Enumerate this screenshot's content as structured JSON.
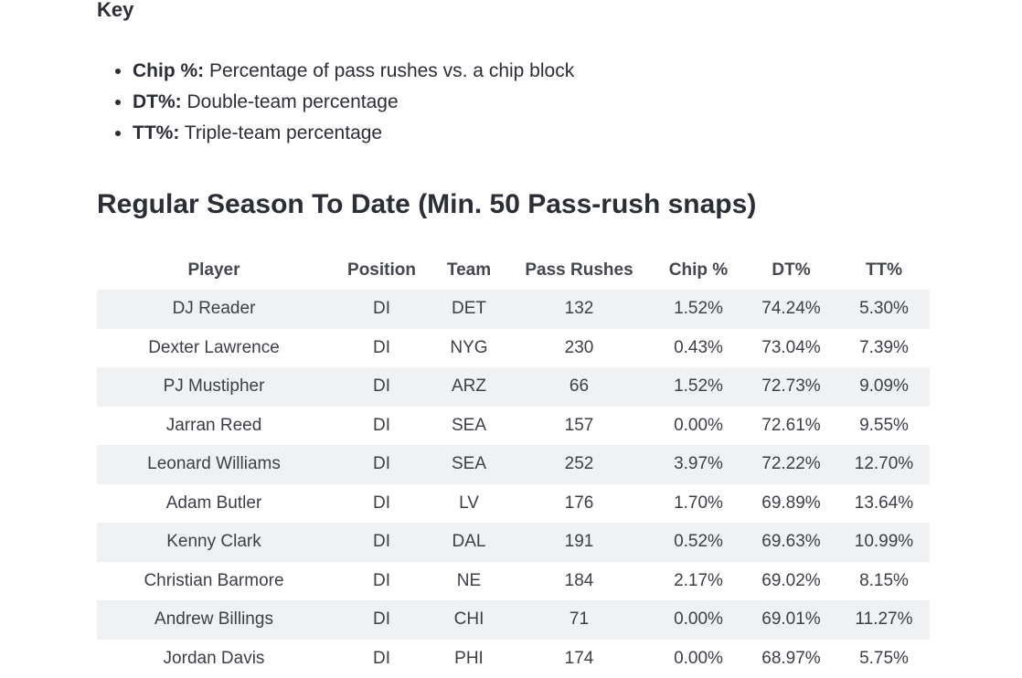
{
  "key": {
    "heading": "Key",
    "items": [
      {
        "term": "Chip %:",
        "desc": " Percentage of pass rushes vs. a chip block"
      },
      {
        "term": "DT%:",
        "desc": " Double-team percentage"
      },
      {
        "term": "TT%:",
        "desc": " Triple-team percentage"
      }
    ]
  },
  "section": {
    "title": "Regular Season To Date (Min. 50 Pass-rush snaps)"
  },
  "table": {
    "headers": [
      "Player",
      "Position",
      "Team",
      "Pass Rushes",
      "Chip %",
      "DT%",
      "TT%"
    ],
    "rows": [
      [
        "DJ Reader",
        "DI",
        "DET",
        "132",
        "1.52%",
        "74.24%",
        "5.30%"
      ],
      [
        "Dexter Lawrence",
        "DI",
        "NYG",
        "230",
        "0.43%",
        "73.04%",
        "7.39%"
      ],
      [
        "PJ Mustipher",
        "DI",
        "ARZ",
        "66",
        "1.52%",
        "72.73%",
        "9.09%"
      ],
      [
        "Jarran Reed",
        "DI",
        "SEA",
        "157",
        "0.00%",
        "72.61%",
        "9.55%"
      ],
      [
        "Leonard Williams",
        "DI",
        "SEA",
        "252",
        "3.97%",
        "72.22%",
        "12.70%"
      ],
      [
        "Adam Butler",
        "DI",
        "LV",
        "176",
        "1.70%",
        "69.89%",
        "13.64%"
      ],
      [
        "Kenny Clark",
        "DI",
        "DAL",
        "191",
        "0.52%",
        "69.63%",
        "10.99%"
      ],
      [
        "Christian Barmore",
        "DI",
        "NE",
        "184",
        "2.17%",
        "69.02%",
        "8.15%"
      ],
      [
        "Andrew Billings",
        "DI",
        "CHI",
        "71",
        "0.00%",
        "69.01%",
        "11.27%"
      ],
      [
        "Jordan Davis",
        "DI",
        "PHI",
        "174",
        "0.00%",
        "68.97%",
        "5.75%"
      ]
    ]
  }
}
